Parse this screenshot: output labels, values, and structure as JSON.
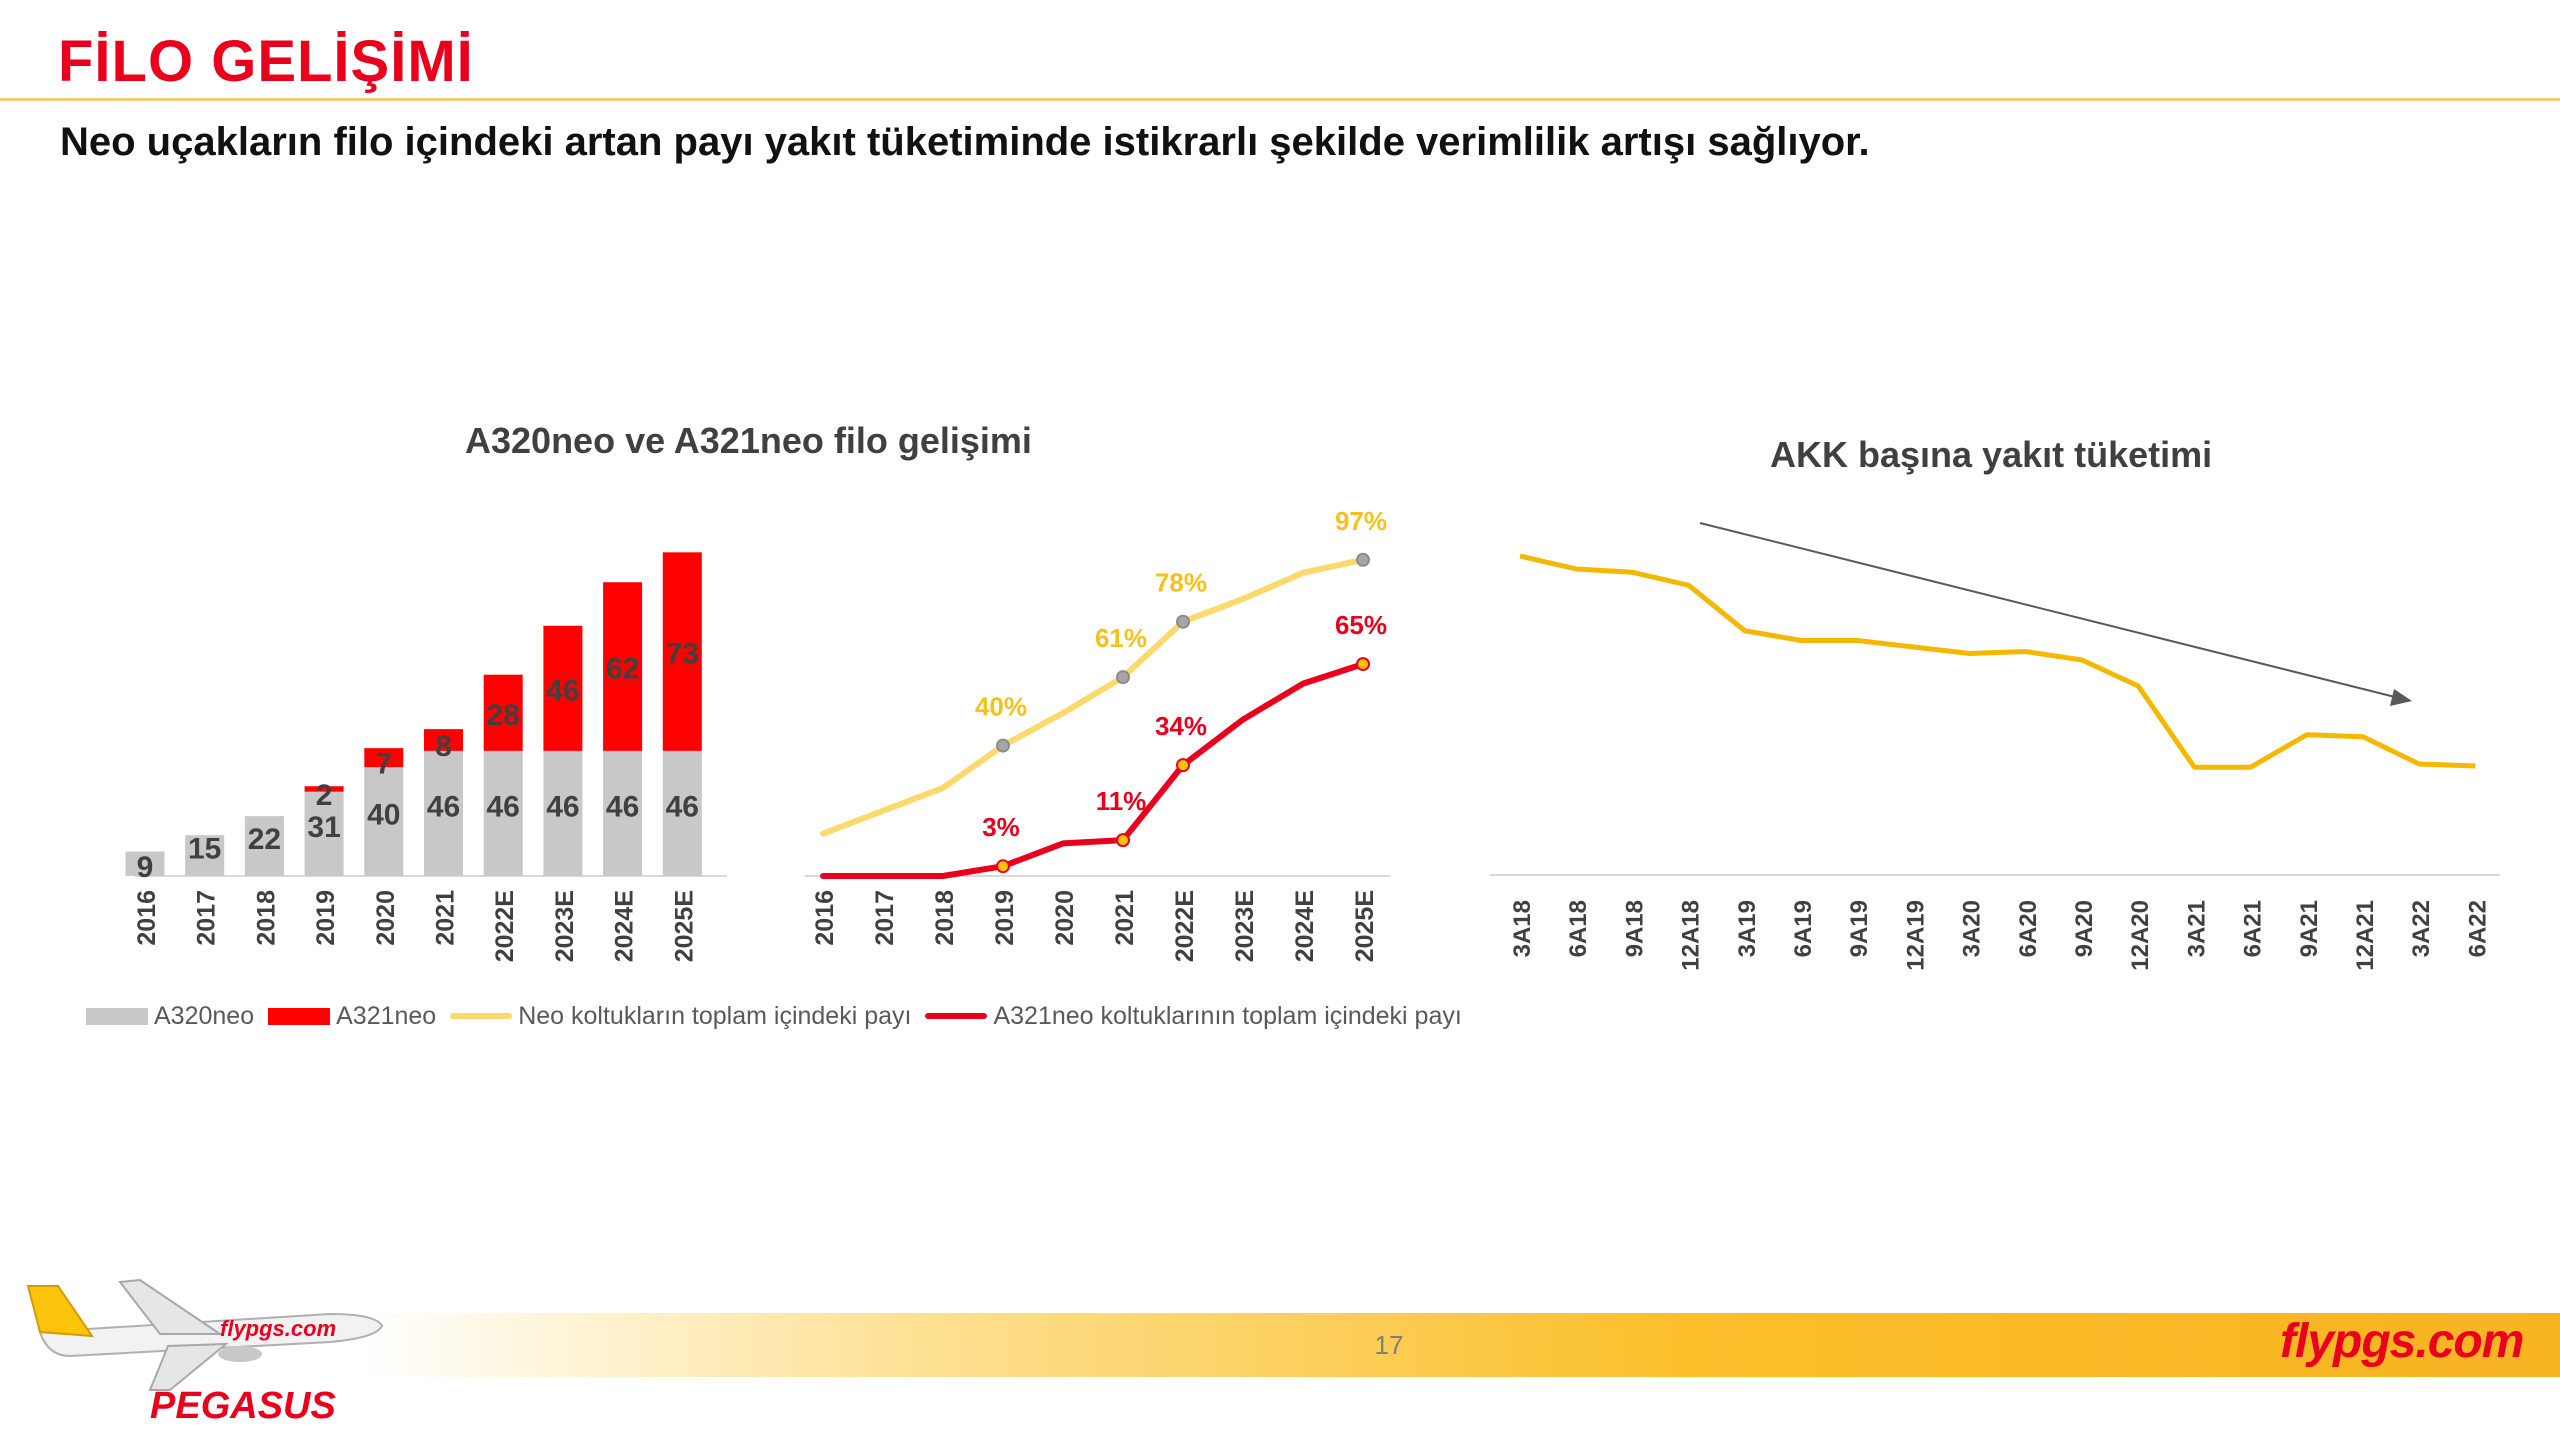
{
  "header": {
    "title": "FİLO GELİŞİMİ",
    "subtitle": "Neo uçakların filo içindeki artan payı yakıt tüketiminde istikrarlı şekilde verimlilik artışı sağlıyor."
  },
  "colors": {
    "title_red": "#e8001c",
    "a320neo_gray": "#c8c8c8",
    "a321neo_red": "#ff0000",
    "neo_share_yellow": "#fbd96c",
    "a321_share_red": "#e8001c",
    "fuel_line": "#f5b800",
    "footer_band": "#fbbf2a"
  },
  "chart_data": [
    {
      "type": "bar",
      "stacked": true,
      "title": "A320neo ve A321neo filo gelişimi",
      "categories": [
        "2016",
        "2017",
        "2018",
        "2019",
        "2020",
        "2021",
        "2022E",
        "2023E",
        "2024E",
        "2025E"
      ],
      "series": [
        {
          "name": "A320neo",
          "values": [
            9,
            15,
            22,
            31,
            40,
            46,
            46,
            46,
            46,
            46
          ]
        },
        {
          "name": "A321neo",
          "values": [
            0,
            0,
            0,
            2,
            7,
            8,
            28,
            46,
            62,
            73
          ]
        }
      ],
      "legend_position": "bottom"
    },
    {
      "type": "line",
      "categories": [
        "2016",
        "2017",
        "2018",
        "2019",
        "2020",
        "2021",
        "2022E",
        "2023E",
        "2024E",
        "2025E"
      ],
      "series": [
        {
          "name": "Neo koltukların toplam içindeki payı",
          "values": [
            13,
            20,
            27,
            40,
            50,
            61,
            78,
            85,
            93,
            97
          ],
          "labels": [
            "",
            "",
            "",
            "40%",
            "",
            "61%",
            "78%",
            "",
            "",
            "97%"
          ]
        },
        {
          "name": "A321neo koltuklarının toplam içindeki payı",
          "values": [
            0,
            0,
            0,
            3,
            10,
            11,
            34,
            48,
            59,
            65
          ],
          "labels": [
            "",
            "",
            "",
            "3%",
            "",
            "11%",
            "34%",
            "",
            "",
            "65%"
          ]
        }
      ],
      "ylim": [
        0,
        100
      ],
      "legend_position": "bottom"
    },
    {
      "type": "line",
      "title": "AKK başına yakıt tüketimi",
      "categories": [
        "3A18",
        "6A18",
        "9A18",
        "12A18",
        "3A19",
        "6A19",
        "9A19",
        "12A19",
        "3A20",
        "6A20",
        "9A20",
        "12A20",
        "3A21",
        "6A21",
        "9A21",
        "12A21",
        "3A22",
        "6A22"
      ],
      "series": [
        {
          "values": [
            100,
            98,
            97.5,
            95.5,
            88.5,
            87,
            87,
            86,
            85,
            85.3,
            84,
            80,
            67.5,
            67.5,
            72.5,
            72.2,
            68,
            67.7
          ]
        }
      ],
      "y_axis_visible": false,
      "trend_arrow": true
    }
  ],
  "legend": {
    "items": [
      "A320neo",
      "A321neo",
      "Neo koltukların toplam içindeki payı",
      "A321neo koltuklarının toplam içindeki payı"
    ]
  },
  "footer": {
    "page_number": "17",
    "brand_right": "flypgs.com",
    "logo_text": "PEGASUS",
    "plane_text": "flypgs.com"
  }
}
